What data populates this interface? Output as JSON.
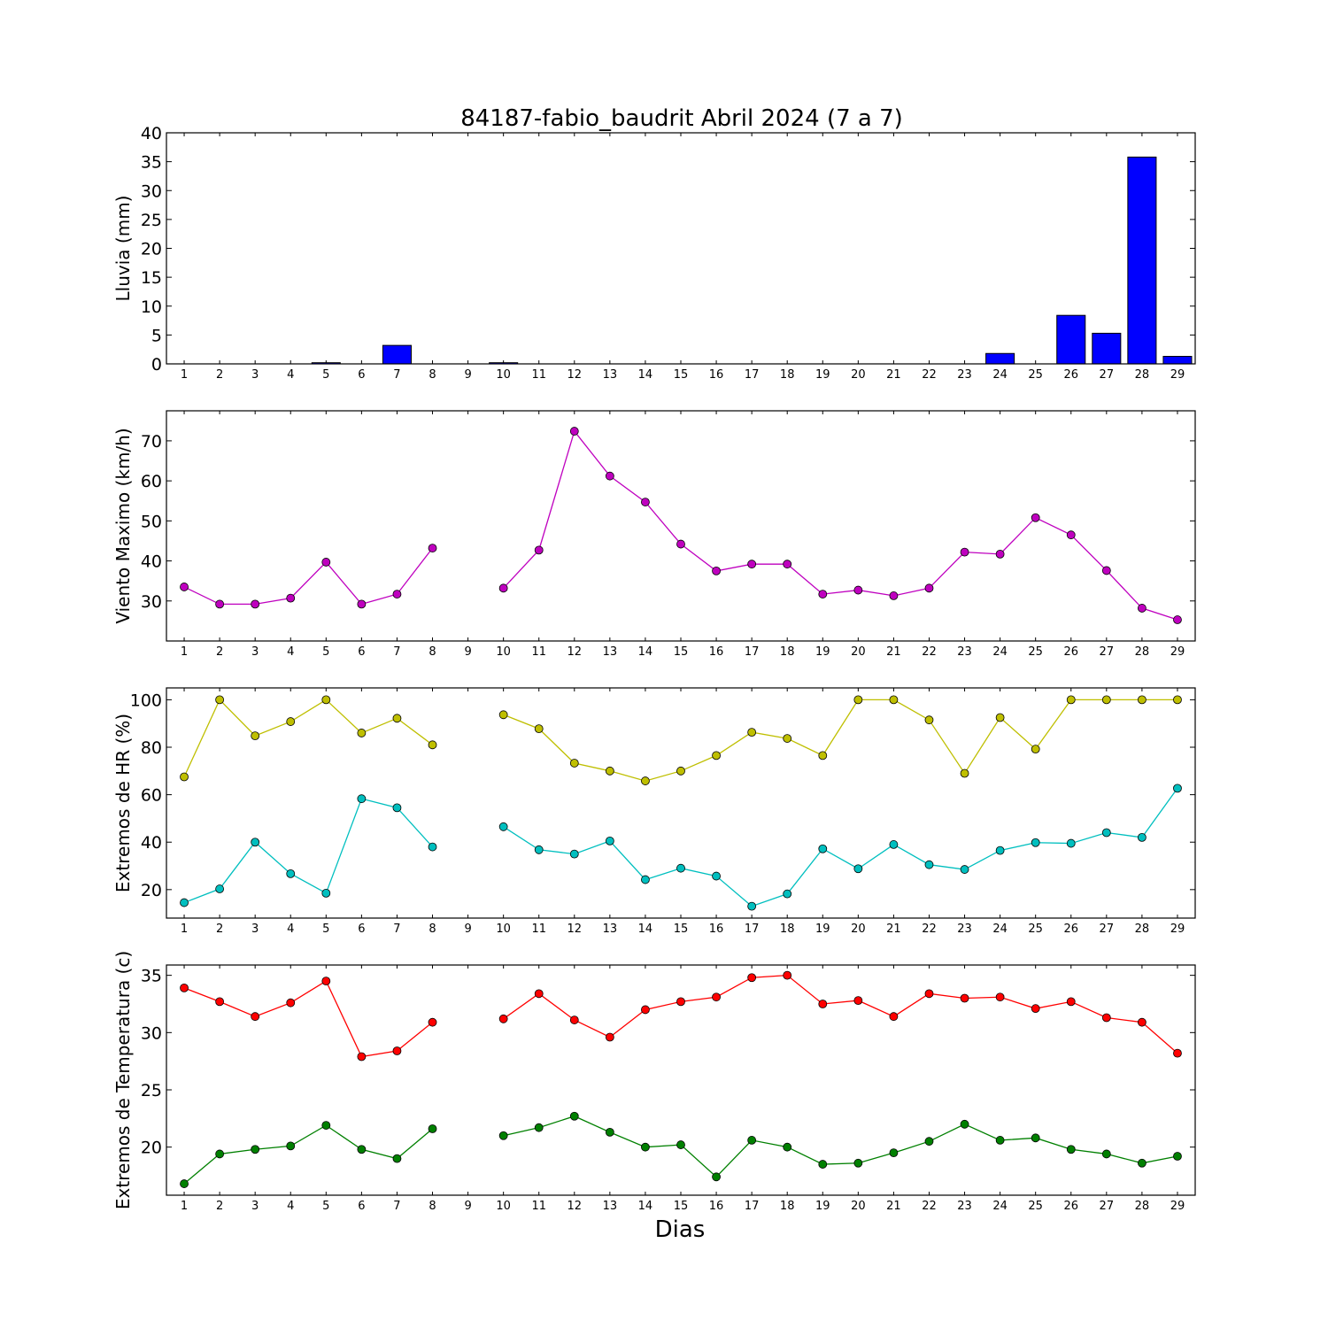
{
  "title": "84187-fabio_baudrit Abril 2024  (7 a 7)",
  "xlabel": "Dias",
  "chart_data": [
    {
      "type": "bar",
      "ylabel": "Lluvia (mm)",
      "ylim": [
        0,
        40
      ],
      "yticks": [
        0,
        5,
        10,
        15,
        20,
        25,
        30,
        35,
        40
      ],
      "categories": [
        1,
        2,
        3,
        4,
        5,
        6,
        7,
        8,
        9,
        10,
        11,
        12,
        13,
        14,
        15,
        16,
        17,
        18,
        19,
        20,
        21,
        22,
        23,
        24,
        25,
        26,
        27,
        28,
        29
      ],
      "values": [
        0,
        0,
        0,
        0,
        0.2,
        0,
        3.2,
        0,
        0,
        0.2,
        0,
        0,
        0,
        0,
        0,
        0,
        0,
        0,
        0,
        0,
        0,
        0,
        0,
        1.8,
        0,
        8.4,
        5.3,
        35.8,
        1.3
      ],
      "color": "#0000ff"
    },
    {
      "type": "line",
      "ylabel": "Viento Maximo (km/h)",
      "ylim": [
        20,
        77.5
      ],
      "yticks": [
        30,
        40,
        50,
        60,
        70
      ],
      "x": [
        1,
        2,
        3,
        4,
        5,
        6,
        7,
        8,
        9,
        10,
        11,
        12,
        13,
        14,
        15,
        16,
        17,
        18,
        19,
        20,
        21,
        22,
        23,
        24,
        25,
        26,
        27,
        28,
        29
      ],
      "series": [
        {
          "color": "#bf00bf",
          "values": [
            33.5,
            29.2,
            29.2,
            30.7,
            39.7,
            29.2,
            31.7,
            43.2,
            null,
            33.2,
            42.7,
            72.4,
            61.2,
            54.7,
            44.2,
            37.5,
            39.2,
            39.2,
            31.7,
            32.7,
            31.3,
            33.2,
            42.2,
            41.7,
            50.8,
            46.5,
            37.6,
            28.2,
            25.3
          ]
        }
      ]
    },
    {
      "type": "line",
      "ylabel": "Extremos de HR (%)",
      "ylim": [
        8,
        105
      ],
      "yticks": [
        20,
        40,
        60,
        80,
        100
      ],
      "x": [
        1,
        2,
        3,
        4,
        5,
        6,
        7,
        8,
        9,
        10,
        11,
        12,
        13,
        14,
        15,
        16,
        17,
        18,
        19,
        20,
        21,
        22,
        23,
        24,
        25,
        26,
        27,
        28,
        29
      ],
      "series": [
        {
          "color": "#bfbf00",
          "values": [
            67.5,
            100,
            84.8,
            90.8,
            100,
            86,
            92.2,
            81,
            null,
            93.7,
            87.8,
            73.3,
            70,
            65.8,
            70,
            76.5,
            86.3,
            83.7,
            76.5,
            100,
            100,
            91.5,
            69,
            92.5,
            79.2,
            100,
            100,
            100,
            100
          ]
        },
        {
          "color": "#00bfbf",
          "values": [
            14.5,
            20.3,
            40,
            26.7,
            18.5,
            58.3,
            54.5,
            38,
            null,
            46.5,
            36.8,
            35,
            40.5,
            24.2,
            29,
            25.7,
            13,
            18.2,
            37.2,
            28.8,
            39,
            30.5,
            28.5,
            36.5,
            39.8,
            39.5,
            44,
            42,
            62.7
          ]
        }
      ]
    },
    {
      "type": "line",
      "ylabel": "Extremos de Temperatura (c)",
      "ylim": [
        15.8,
        35.9
      ],
      "yticks": [
        20,
        25,
        30,
        35
      ],
      "x": [
        1,
        2,
        3,
        4,
        5,
        6,
        7,
        8,
        9,
        10,
        11,
        12,
        13,
        14,
        15,
        16,
        17,
        18,
        19,
        20,
        21,
        22,
        23,
        24,
        25,
        26,
        27,
        28,
        29
      ],
      "series": [
        {
          "color": "#ff0000",
          "values": [
            33.9,
            32.7,
            31.4,
            32.6,
            34.5,
            27.9,
            28.4,
            30.9,
            null,
            31.2,
            33.4,
            31.1,
            29.6,
            32,
            32.7,
            33.1,
            34.8,
            35,
            32.5,
            32.8,
            31.4,
            33.4,
            33,
            33.1,
            32.1,
            32.7,
            31.3,
            30.9,
            28.2
          ]
        },
        {
          "color": "#008000",
          "values": [
            16.8,
            19.4,
            19.8,
            20.1,
            21.9,
            19.8,
            19,
            21.6,
            null,
            21,
            21.7,
            22.7,
            21.3,
            20,
            20.2,
            17.4,
            20.6,
            20,
            18.5,
            18.6,
            19.5,
            20.5,
            22,
            20.6,
            20.8,
            19.8,
            19.4,
            18.6,
            19.2
          ]
        }
      ]
    }
  ]
}
